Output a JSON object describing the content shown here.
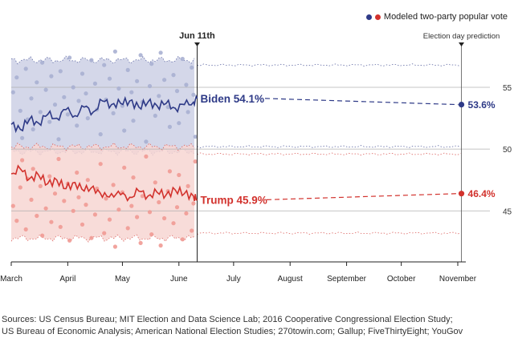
{
  "colors": {
    "biden": "#2e3a87",
    "trump": "#d2322d",
    "biden_band": "#cdd0e5",
    "trump_band": "#f7d6d2",
    "biden_dot": "#a8b0d2",
    "trump_dot": "#ef9a94",
    "grid": "#b0b0b0",
    "axis": "#222222",
    "highlight": "#d2322d"
  },
  "legend": {
    "label": "Modeled two-party popular vote"
  },
  "sources": [
    "Sources: US Census Bureau; MIT Election and Data Science Lab; 2016 Cooperative Congressional Election Study;",
    "US Bureau of Economic Analysis; American National Election Studies; 270towin.com; Gallup; FiveThirtyEight; YouGov"
  ],
  "chart_data": {
    "type": "line",
    "title": "",
    "xlabel": "",
    "ylabel": "Modeled two-party popular vote (%)",
    "ylim": [
      41,
      58.5
    ],
    "yticks": [
      45,
      50,
      55
    ],
    "x_domain": [
      "March 1",
      "November 3"
    ],
    "month_ticks": [
      {
        "label": "March",
        "day": 0
      },
      {
        "label": "April",
        "day": 31
      },
      {
        "label": "May",
        "day": 61
      },
      {
        "label": "June",
        "day": 92
      },
      {
        "label": "July",
        "day": 122
      },
      {
        "label": "August",
        "day": 153
      },
      {
        "label": "September",
        "day": 184
      },
      {
        "label": "October",
        "day": 214
      },
      {
        "label": "November",
        "day": 245
      }
    ],
    "today": {
      "label": "Jun 11th",
      "day": 102
    },
    "election_day": {
      "label": "Election day prediction",
      "day": 247
    },
    "series": [
      {
        "name": "Biden",
        "current_label": "Biden 54.1%",
        "current_value": 54.1,
        "predicted_label": "53.6%",
        "predicted_value": 53.6,
        "history": [
          [
            0,
            52.0
          ],
          [
            5,
            51.6
          ],
          [
            10,
            52.4
          ],
          [
            15,
            52.1
          ],
          [
            20,
            52.8
          ],
          [
            25,
            52.5
          ],
          [
            30,
            53.2
          ],
          [
            35,
            52.7
          ],
          [
            40,
            53.4
          ],
          [
            45,
            53.0
          ],
          [
            50,
            53.9
          ],
          [
            55,
            53.6
          ],
          [
            60,
            53.7
          ],
          [
            65,
            53.9
          ],
          [
            70,
            53.4
          ],
          [
            75,
            53.8
          ],
          [
            80,
            53.5
          ],
          [
            85,
            53.7
          ],
          [
            90,
            53.3
          ],
          [
            95,
            53.6
          ],
          [
            100,
            53.8
          ],
          [
            102,
            54.1
          ]
        ],
        "band_high": 57.2,
        "band_low": 49.8,
        "forecast_band_high": 56.8,
        "forecast_band_low": 50.2,
        "points": [
          [
            1,
            54.6
          ],
          [
            3,
            55.8
          ],
          [
            5,
            53.1
          ],
          [
            6,
            50.9
          ],
          [
            8,
            56.5
          ],
          [
            9,
            52.4
          ],
          [
            11,
            54.1
          ],
          [
            12,
            51.6
          ],
          [
            14,
            55.4
          ],
          [
            16,
            53.0
          ],
          [
            17,
            57.0
          ],
          [
            19,
            54.8
          ],
          [
            21,
            52.2
          ],
          [
            22,
            55.9
          ],
          [
            24,
            53.6
          ],
          [
            26,
            50.8
          ],
          [
            27,
            56.3
          ],
          [
            29,
            54.2
          ],
          [
            31,
            52.8
          ],
          [
            32,
            57.4
          ],
          [
            34,
            55.0
          ],
          [
            36,
            51.9
          ],
          [
            37,
            53.9
          ],
          [
            39,
            56.1
          ],
          [
            41,
            54.5
          ],
          [
            42,
            52.5
          ],
          [
            44,
            57.2
          ],
          [
            46,
            55.3
          ],
          [
            47,
            53.2
          ],
          [
            49,
            51.2
          ],
          [
            51,
            56.8
          ],
          [
            52,
            54.0
          ],
          [
            54,
            55.7
          ],
          [
            56,
            52.9
          ],
          [
            57,
            57.9
          ],
          [
            59,
            54.9
          ],
          [
            61,
            53.5
          ],
          [
            62,
            51.5
          ],
          [
            64,
            56.4
          ],
          [
            66,
            54.6
          ],
          [
            67,
            52.3
          ],
          [
            69,
            55.5
          ],
          [
            71,
            57.6
          ],
          [
            72,
            53.8
          ],
          [
            74,
            50.6
          ],
          [
            76,
            55.1
          ],
          [
            77,
            56.9
          ],
          [
            79,
            52.7
          ],
          [
            81,
            54.3
          ],
          [
            82,
            57.8
          ],
          [
            84,
            55.6
          ],
          [
            86,
            53.4
          ],
          [
            87,
            51.8
          ],
          [
            89,
            56.0
          ],
          [
            91,
            54.7
          ],
          [
            92,
            52.1
          ],
          [
            94,
            57.3
          ],
          [
            96,
            55.2
          ],
          [
            97,
            53.0
          ],
          [
            99,
            56.6
          ],
          [
            100,
            54.4
          ],
          [
            101,
            51.0
          ]
        ]
      },
      {
        "name": "Trump",
        "current_label": "Trump 45.9%",
        "current_value": 45.9,
        "predicted_label": "46.4%",
        "predicted_value": 46.4,
        "history": [
          [
            0,
            48.0
          ],
          [
            5,
            48.4
          ],
          [
            10,
            47.6
          ],
          [
            15,
            47.9
          ],
          [
            20,
            47.2
          ],
          [
            25,
            47.5
          ],
          [
            30,
            46.8
          ],
          [
            35,
            47.3
          ],
          [
            40,
            46.6
          ],
          [
            45,
            47.0
          ],
          [
            50,
            46.1
          ],
          [
            55,
            46.4
          ],
          [
            60,
            46.3
          ],
          [
            65,
            46.1
          ],
          [
            70,
            46.6
          ],
          [
            75,
            46.2
          ],
          [
            80,
            46.5
          ],
          [
            85,
            46.3
          ],
          [
            90,
            46.7
          ],
          [
            95,
            46.4
          ],
          [
            100,
            46.2
          ],
          [
            102,
            45.9
          ]
        ],
        "band_high": 50.2,
        "band_low": 42.8,
        "forecast_band_high": 49.6,
        "forecast_band_low": 43.2,
        "points": [
          [
            1,
            45.4
          ],
          [
            3,
            44.2
          ],
          [
            5,
            46.9
          ],
          [
            6,
            49.1
          ],
          [
            8,
            43.5
          ],
          [
            9,
            47.6
          ],
          [
            11,
            45.9
          ],
          [
            12,
            48.4
          ],
          [
            14,
            44.6
          ],
          [
            16,
            47.0
          ],
          [
            17,
            43.0
          ],
          [
            19,
            45.2
          ],
          [
            21,
            47.8
          ],
          [
            22,
            44.1
          ],
          [
            24,
            46.4
          ],
          [
            26,
            49.2
          ],
          [
            27,
            43.7
          ],
          [
            29,
            45.8
          ],
          [
            31,
            47.2
          ],
          [
            32,
            42.6
          ],
          [
            34,
            45.0
          ],
          [
            36,
            48.1
          ],
          [
            37,
            46.1
          ],
          [
            39,
            43.9
          ],
          [
            41,
            45.5
          ],
          [
            42,
            47.5
          ],
          [
            44,
            42.8
          ],
          [
            46,
            44.7
          ],
          [
            47,
            46.8
          ],
          [
            49,
            48.8
          ],
          [
            51,
            43.2
          ],
          [
            52,
            46.0
          ],
          [
            54,
            44.3
          ],
          [
            56,
            47.1
          ],
          [
            57,
            42.1
          ],
          [
            59,
            45.1
          ],
          [
            61,
            46.5
          ],
          [
            62,
            48.5
          ],
          [
            64,
            43.6
          ],
          [
            66,
            45.4
          ],
          [
            67,
            47.7
          ],
          [
            69,
            44.5
          ],
          [
            71,
            42.4
          ],
          [
            72,
            46.2
          ],
          [
            74,
            49.4
          ],
          [
            76,
            44.9
          ],
          [
            77,
            43.1
          ],
          [
            79,
            47.3
          ],
          [
            81,
            45.7
          ],
          [
            82,
            42.2
          ],
          [
            84,
            44.4
          ],
          [
            86,
            46.6
          ],
          [
            87,
            48.2
          ],
          [
            89,
            44.0
          ],
          [
            91,
            45.3
          ],
          [
            92,
            47.9
          ],
          [
            94,
            42.7
          ],
          [
            96,
            44.8
          ],
          [
            97,
            47.0
          ],
          [
            99,
            43.4
          ],
          [
            100,
            45.6
          ],
          [
            101,
            49.0
          ]
        ]
      }
    ]
  }
}
